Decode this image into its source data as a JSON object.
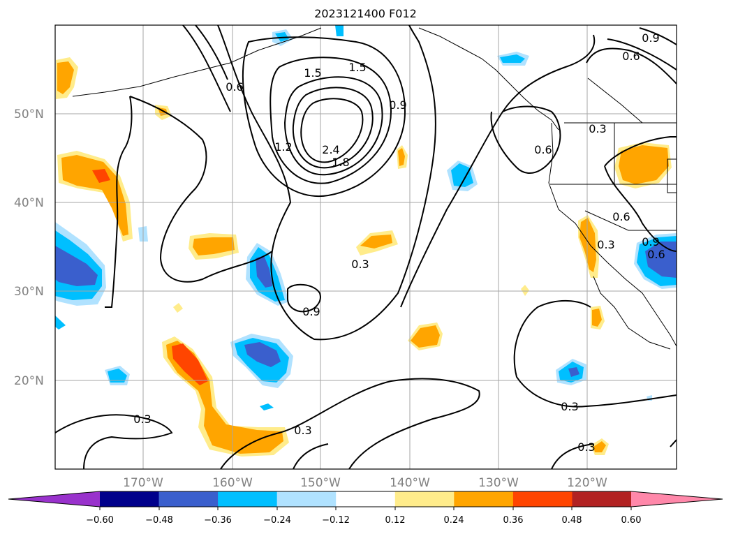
{
  "title": "2023121400 F012",
  "lat_labels": [
    "50°N",
    "40°N",
    "30°N",
    "20°N"
  ],
  "lon_labels": [
    "170°W",
    "160°W",
    "150°W",
    "140°W",
    "130°W",
    "120°W"
  ],
  "contour_labels": [
    "1.5",
    "1.5",
    "0.6",
    "0.9",
    "1.2",
    "2.4",
    "1.8",
    "0.9",
    "0.6",
    "0.6",
    "0.3",
    "0.9",
    "0.3",
    "0.3",
    "0.3",
    "0.3",
    "0.3",
    "0.6",
    "0.9",
    "0.3",
    "0.6"
  ],
  "colorbar": {
    "ticks": [
      "−0.60",
      "−0.48",
      "−0.36",
      "−0.24",
      "−0.12",
      "0.12",
      "0.24",
      "0.36",
      "0.48",
      "0.60"
    ],
    "colors": [
      "#9932cc",
      "#00008b",
      "#3a5fcd",
      "#00bfff",
      "#b0e2ff",
      "#ffffff",
      "#ffec8b",
      "#ffa500",
      "#ff4500",
      "#b22222",
      "#ff88aa"
    ]
  }
}
